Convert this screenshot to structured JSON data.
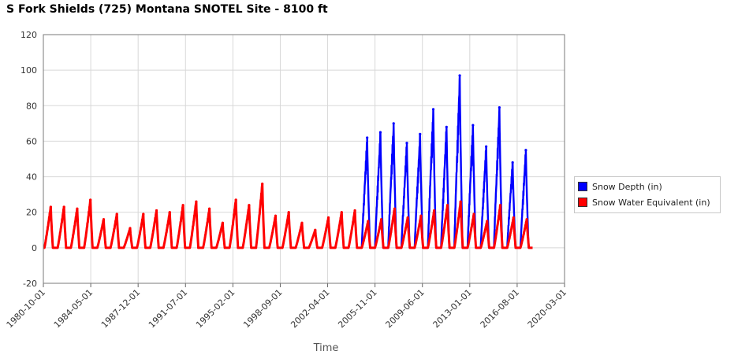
{
  "chart_data": {
    "type": "line",
    "title": "S Fork Shields (725) Montana  SNOTEL Site - 8100 ft",
    "xlabel": "Time",
    "ylabel": "",
    "ylim": [
      -20,
      120
    ],
    "yticks": [
      "120",
      "100",
      "80",
      "60",
      "40",
      "20",
      "0",
      "-20"
    ],
    "xticks": [
      "1980-10-01",
      "1984-05-01",
      "1987-12-01",
      "1991-07-01",
      "1995-02-01",
      "1998-09-01",
      "2002-04-01",
      "2005-11-01",
      "2009-06-01",
      "2013-01-01",
      "2016-08-01",
      "2020-03-01"
    ],
    "xlim": [
      "1980-10-01",
      "2020-03-01"
    ],
    "grid": true,
    "legend_position": "right",
    "series": [
      {
        "name": "Snow Depth (in)",
        "color": "#0000ff",
        "start_year": 2004,
        "annual_peak": [
          {
            "water_year": 2005,
            "peak": 62
          },
          {
            "water_year": 2006,
            "peak": 65
          },
          {
            "water_year": 2007,
            "peak": 70
          },
          {
            "water_year": 2008,
            "peak": 59
          },
          {
            "water_year": 2009,
            "peak": 64
          },
          {
            "water_year": 2010,
            "peak": 78
          },
          {
            "water_year": 2011,
            "peak": 68
          },
          {
            "water_year": 2012,
            "peak": 97
          },
          {
            "water_year": 2013,
            "peak": 69
          },
          {
            "water_year": 2014,
            "peak": 57
          },
          {
            "water_year": 2015,
            "peak": 79
          },
          {
            "water_year": 2016,
            "peak": 48
          },
          {
            "water_year": 2017,
            "peak": 55
          }
        ]
      },
      {
        "name": "Snow Water Equivalent (in)",
        "color": "#ff0000",
        "annual_peak": [
          {
            "water_year": 1981,
            "peak": 23
          },
          {
            "water_year": 1982,
            "peak": 23
          },
          {
            "water_year": 1983,
            "peak": 22
          },
          {
            "water_year": 1984,
            "peak": 27
          },
          {
            "water_year": 1985,
            "peak": 16
          },
          {
            "water_year": 1986,
            "peak": 19
          },
          {
            "water_year": 1987,
            "peak": 11
          },
          {
            "water_year": 1988,
            "peak": 19
          },
          {
            "water_year": 1989,
            "peak": 21
          },
          {
            "water_year": 1990,
            "peak": 20
          },
          {
            "water_year": 1991,
            "peak": 24
          },
          {
            "water_year": 1992,
            "peak": 26
          },
          {
            "water_year": 1993,
            "peak": 22
          },
          {
            "water_year": 1994,
            "peak": 14
          },
          {
            "water_year": 1995,
            "peak": 27
          },
          {
            "water_year": 1996,
            "peak": 24
          },
          {
            "water_year": 1997,
            "peak": 36
          },
          {
            "water_year": 1998,
            "peak": 18
          },
          {
            "water_year": 1999,
            "peak": 20
          },
          {
            "water_year": 2000,
            "peak": 14
          },
          {
            "water_year": 2001,
            "peak": 10
          },
          {
            "water_year": 2002,
            "peak": 17
          },
          {
            "water_year": 2003,
            "peak": 20
          },
          {
            "water_year": 2004,
            "peak": 21
          },
          {
            "water_year": 2005,
            "peak": 15
          },
          {
            "water_year": 2006,
            "peak": 16
          },
          {
            "water_year": 2007,
            "peak": 22
          },
          {
            "water_year": 2008,
            "peak": 17
          },
          {
            "water_year": 2009,
            "peak": 18
          },
          {
            "water_year": 2010,
            "peak": 21
          },
          {
            "water_year": 2011,
            "peak": 24
          },
          {
            "water_year": 2012,
            "peak": 26
          },
          {
            "water_year": 2013,
            "peak": 19
          },
          {
            "water_year": 2014,
            "peak": 15
          },
          {
            "water_year": 2015,
            "peak": 24
          },
          {
            "water_year": 2016,
            "peak": 17
          },
          {
            "water_year": 2017,
            "peak": 16
          }
        ]
      }
    ]
  }
}
